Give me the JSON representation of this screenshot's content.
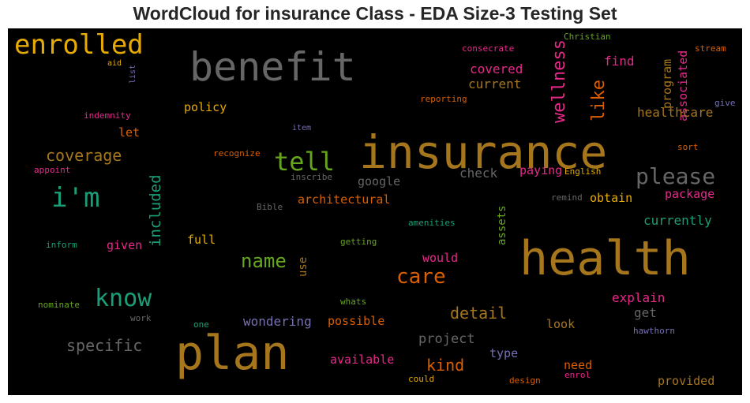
{
  "chart_data": {
    "type": "wordcloud",
    "title": "WordCloud for insurance Class - EDA Size-3 Testing Set",
    "background": "#000000",
    "palette": {
      "gold": "#a6761d",
      "gray": "#666666",
      "orange": "#d95f02",
      "teal": "#1b9e77",
      "green": "#66a61e",
      "magenta": "#e7298a",
      "yellow": "#e6ab02",
      "purple": "#7570b3"
    },
    "words": [
      {
        "text": "insurance",
        "color": "gold"
      },
      {
        "text": "health",
        "color": "gold"
      },
      {
        "text": "plan",
        "color": "gold"
      },
      {
        "text": "benefit",
        "color": "gray"
      },
      {
        "text": "enrolled",
        "color": "yellow"
      },
      {
        "text": "i'm",
        "color": "teal"
      },
      {
        "text": "know",
        "color": "teal"
      },
      {
        "text": "tell",
        "color": "green"
      },
      {
        "text": "please",
        "color": "gray"
      },
      {
        "text": "care",
        "color": "orange"
      },
      {
        "text": "name",
        "color": "green"
      },
      {
        "text": "coverage",
        "color": "gold"
      },
      {
        "text": "specific",
        "color": "gray"
      },
      {
        "text": "wellness",
        "color": "magenta"
      },
      {
        "text": "like",
        "color": "orange"
      },
      {
        "text": "included",
        "color": "teal"
      },
      {
        "text": "detail",
        "color": "gold"
      },
      {
        "text": "kind",
        "color": "orange"
      },
      {
        "text": "project",
        "color": "gray"
      },
      {
        "text": "program",
        "color": "gold"
      },
      {
        "text": "associated",
        "color": "magenta"
      },
      {
        "text": "covered",
        "color": "magenta"
      },
      {
        "text": "current",
        "color": "gold"
      },
      {
        "text": "find",
        "color": "magenta"
      },
      {
        "text": "healthcare",
        "color": "gold"
      },
      {
        "text": "policy",
        "color": "yellow"
      },
      {
        "text": "let",
        "color": "orange"
      },
      {
        "text": "google",
        "color": "gray"
      },
      {
        "text": "check",
        "color": "gray"
      },
      {
        "text": "paying",
        "color": "magenta"
      },
      {
        "text": "package",
        "color": "magenta"
      },
      {
        "text": "architectural",
        "color": "orange"
      },
      {
        "text": "obtain",
        "color": "yellow"
      },
      {
        "text": "currently",
        "color": "teal"
      },
      {
        "text": "full",
        "color": "yellow"
      },
      {
        "text": "given",
        "color": "magenta"
      },
      {
        "text": "would",
        "color": "magenta"
      },
      {
        "text": "assets",
        "color": "green"
      },
      {
        "text": "explain",
        "color": "magenta"
      },
      {
        "text": "get",
        "color": "gray"
      },
      {
        "text": "wondering",
        "color": "purple"
      },
      {
        "text": "possible",
        "color": "orange"
      },
      {
        "text": "use",
        "color": "gold"
      },
      {
        "text": "look",
        "color": "gold"
      },
      {
        "text": "type",
        "color": "purple"
      },
      {
        "text": "available",
        "color": "magenta"
      },
      {
        "text": "need",
        "color": "orange"
      },
      {
        "text": "provided",
        "color": "gold"
      },
      {
        "text": "reporting",
        "color": "orange"
      },
      {
        "text": "consecrate",
        "color": "magenta"
      },
      {
        "text": "Christian",
        "color": "green"
      },
      {
        "text": "stream",
        "color": "orange"
      },
      {
        "text": "aid",
        "color": "yellow"
      },
      {
        "text": "list",
        "color": "purple"
      },
      {
        "text": "indemnity",
        "color": "magenta"
      },
      {
        "text": "item",
        "color": "purple"
      },
      {
        "text": "give",
        "color": "purple"
      },
      {
        "text": "sort",
        "color": "orange"
      },
      {
        "text": "recognize",
        "color": "orange"
      },
      {
        "text": "appoint",
        "color": "magenta"
      },
      {
        "text": "inscribe",
        "color": "gray"
      },
      {
        "text": "English",
        "color": "yellow"
      },
      {
        "text": "remind",
        "color": "gray"
      },
      {
        "text": "Bible",
        "color": "gray"
      },
      {
        "text": "amenities",
        "color": "teal"
      },
      {
        "text": "inform",
        "color": "teal"
      },
      {
        "text": "getting",
        "color": "green"
      },
      {
        "text": "nominate",
        "color": "green"
      },
      {
        "text": "whats",
        "color": "green"
      },
      {
        "text": "work",
        "color": "gray"
      },
      {
        "text": "one",
        "color": "teal"
      },
      {
        "text": "hawthorn",
        "color": "purple"
      },
      {
        "text": "could",
        "color": "yellow"
      },
      {
        "text": "design",
        "color": "orange"
      },
      {
        "text": "enrol",
        "color": "magenta"
      }
    ]
  }
}
